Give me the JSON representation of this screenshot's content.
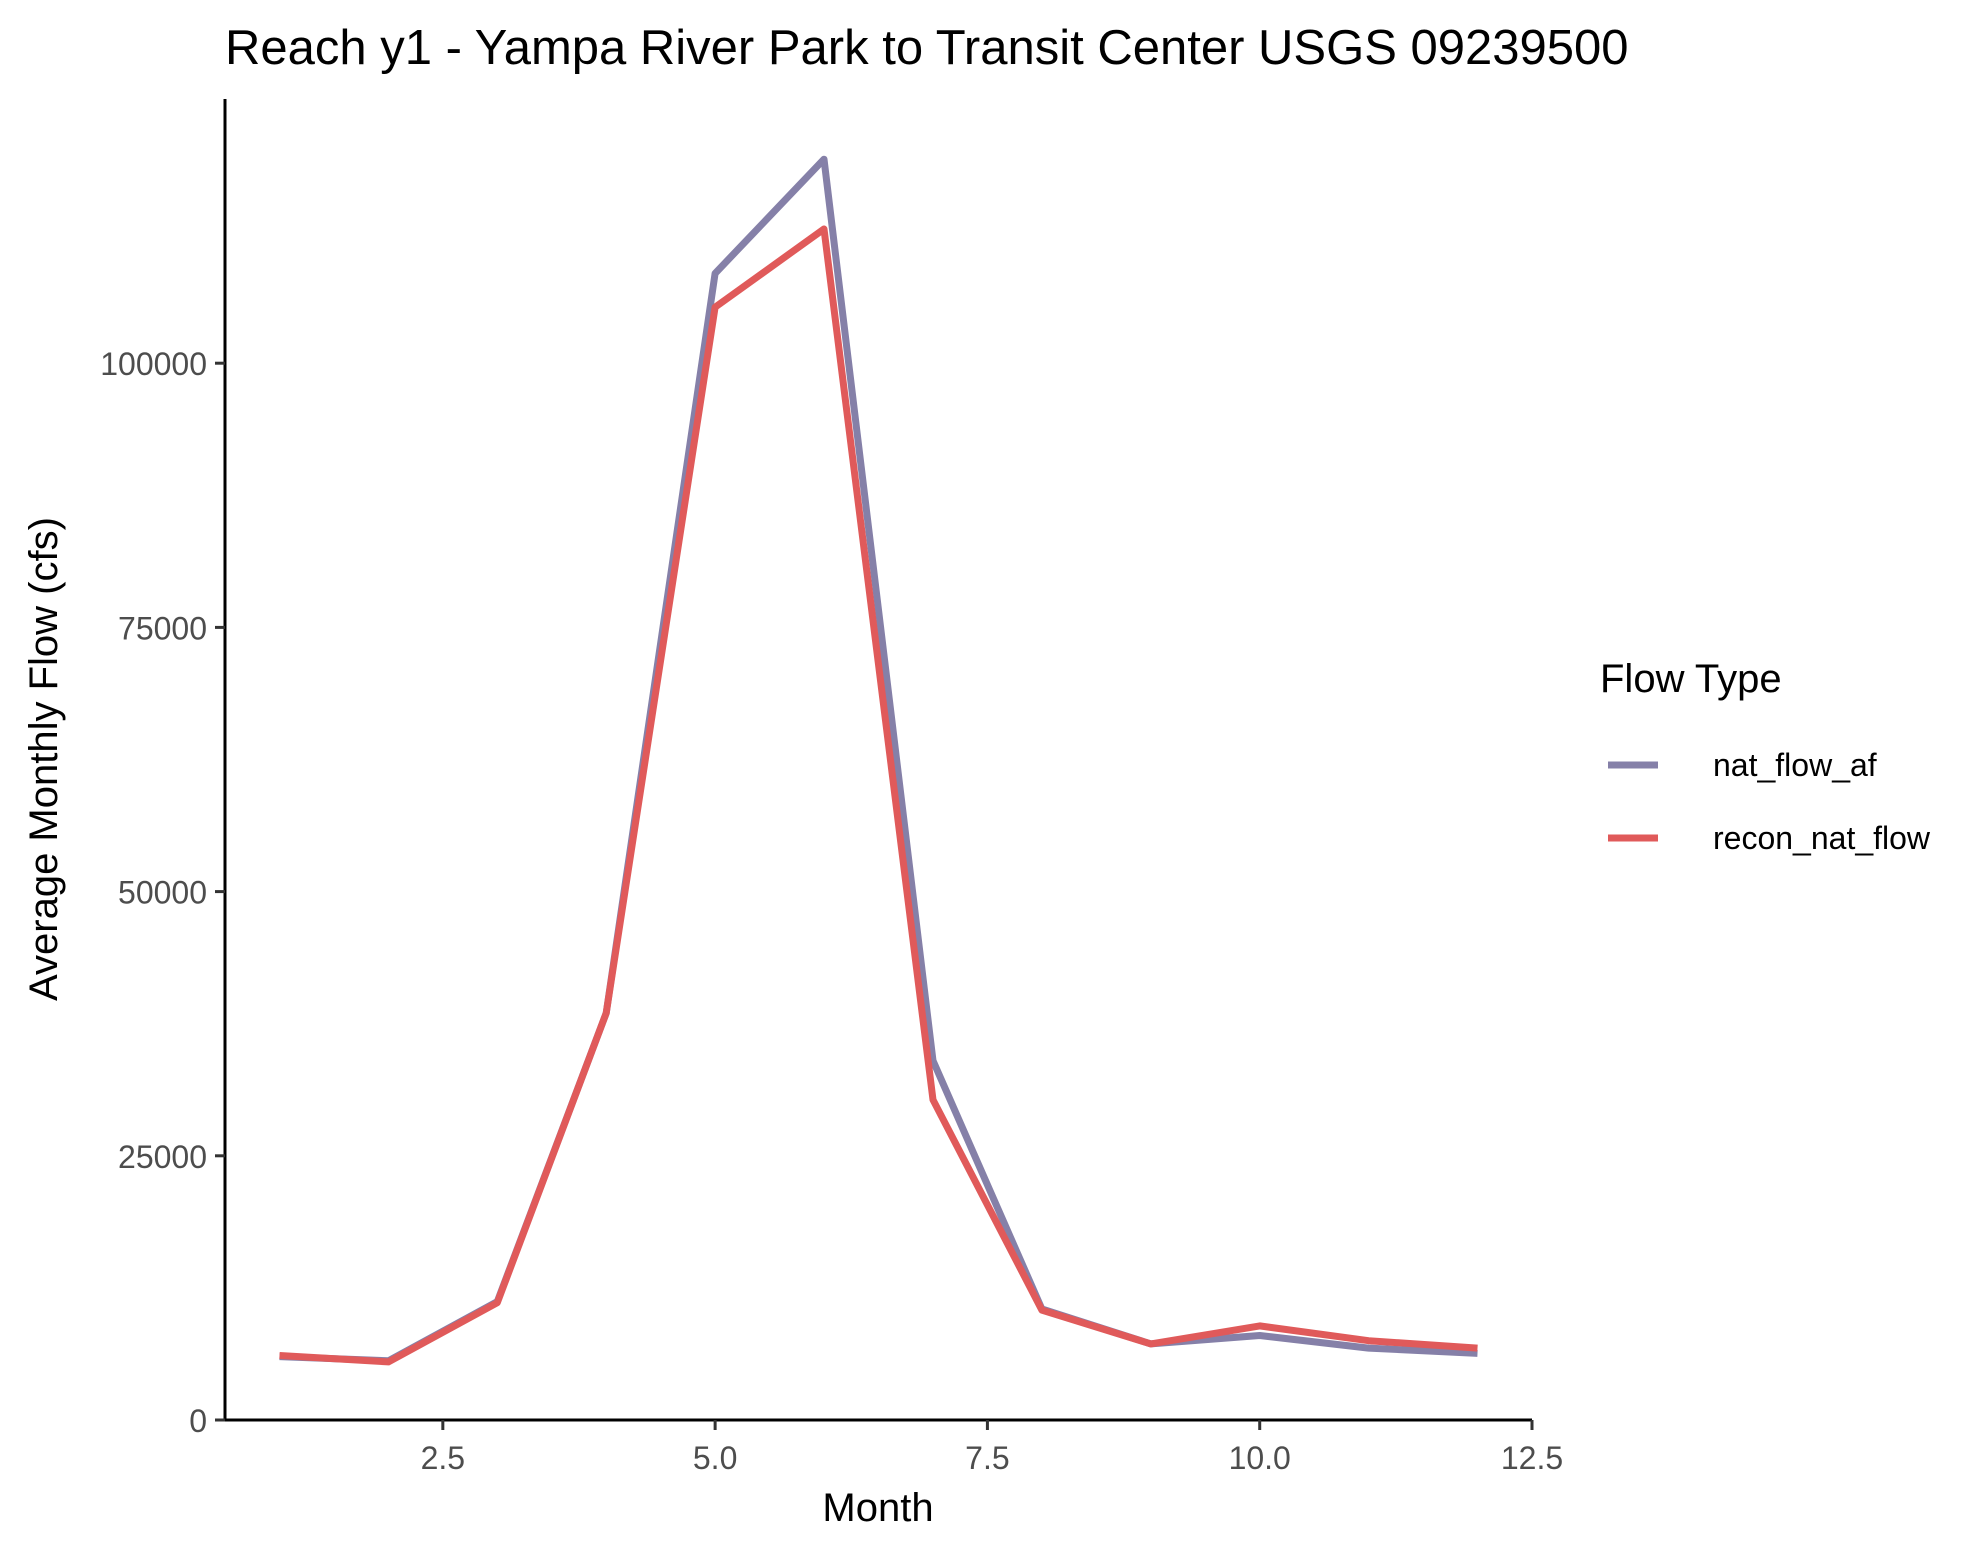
{
  "chart_data": {
    "type": "line",
    "title": "Reach y1 - Yampa River Park to Transit Center USGS 09239500",
    "xlabel": "Month",
    "ylabel": "Average Monthly Flow (cfs)",
    "x": [
      1,
      2,
      3,
      4,
      5,
      6,
      7,
      8,
      9,
      10,
      11,
      12
    ],
    "xlim": [
      0.5,
      12.5
    ],
    "ylim": [
      0,
      125000
    ],
    "x_ticks": [
      "2.5",
      "5.0",
      "7.5",
      "10.0",
      "12.5"
    ],
    "y_ticks": [
      "0",
      "25000",
      "50000",
      "75000",
      "100000"
    ],
    "grid": false,
    "legend": {
      "title": "Flow Type",
      "placement": "right"
    },
    "series": [
      {
        "name": "nat_flow_af",
        "color": "#8580a8",
        "values": [
          6000,
          5600,
          11200,
          38500,
          108500,
          119300,
          34000,
          10500,
          7200,
          8000,
          6800,
          6300
        ]
      },
      {
        "name": "recon_nat_flow",
        "color": "#e05a5a",
        "values": [
          6100,
          5500,
          11100,
          38500,
          105300,
          112700,
          30300,
          10400,
          7200,
          8900,
          7500,
          6800
        ]
      }
    ]
  }
}
